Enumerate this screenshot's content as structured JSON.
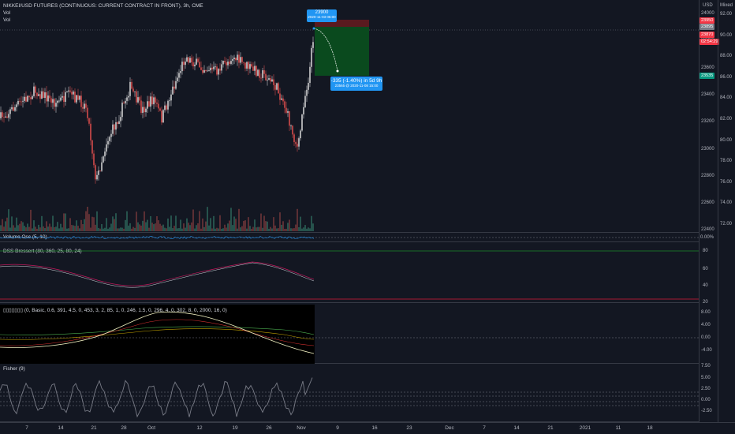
{
  "main_pane": {
    "title": "NIKKEI/USD FUTURES (CONTINUOUS: CURRENT CONTRACT IN FRONT), 3h, CME",
    "indicators": [
      "Vol",
      "Vol"
    ]
  },
  "panes": [
    {
      "title": "Volume Osc (5, 10)"
    },
    {
      "title": "DSS Bressert (80, 360, 25, 80, 24)"
    },
    {
      "title": "▯▯▯▯▯▯▯ (0, Basic, 0.6, 391, 4.5, 0, 453, 3, 2, 85, 1, 0, 246, 1.5, 0, 296, 4, 0, 302, 8, 0, 2000, 16, 0)"
    },
    {
      "title": "Fisher (9)"
    }
  ],
  "price_axis": {
    "currency": "USD",
    "ticks": [
      "24000",
      "23800",
      "23600",
      "23400",
      "23200",
      "23000",
      "22800",
      "22600",
      "22400"
    ],
    "tags": [
      {
        "label": "23950",
        "color": "#f23645"
      },
      {
        "label": "23895",
        "color": "#787b86"
      },
      {
        "label": "23870",
        "color": "#f23645"
      },
      {
        "label": "02:54:29",
        "color": "#f23645"
      },
      {
        "label": "23535",
        "color": "#089981"
      }
    ]
  },
  "secondary_axis": {
    "label": "Mixed",
    "ticks": [
      "92.00",
      "90.00",
      "88.00",
      "86.00",
      "84.00",
      "82.00",
      "80.00",
      "78.00",
      "76.00",
      "74.00",
      "72.00"
    ]
  },
  "volosc_axis": {
    "ticks": [
      "0.00%"
    ]
  },
  "dss_axis": {
    "ticks": [
      "80",
      "60",
      "40",
      "20"
    ]
  },
  "custom_axis": {
    "ticks": [
      "8.00",
      "4.00",
      "0.00",
      "-4.00"
    ]
  },
  "fisher_axis": {
    "ticks": [
      "7.50",
      "5.00",
      "2.50",
      "0.00",
      "-2.50"
    ]
  },
  "time_axis": {
    "labels": [
      "7",
      "14",
      "21",
      "28",
      "Oct",
      "12",
      "19",
      "26",
      "Nov",
      "9",
      "16",
      "23",
      "Dec",
      "7",
      "14",
      "21",
      "2021",
      "11",
      "18"
    ]
  },
  "callouts": {
    "top": {
      "line1": "23900",
      "line2": "2020-11-03 06:00"
    },
    "bottom": {
      "line1": "-335 (-1.40%) in 5d 9h",
      "line2": "23565 @ 2020-11-08 15:00"
    }
  },
  "colors": {
    "background": "#131722",
    "up": "#e8e8e8",
    "down": "#ef5350",
    "accent": "#2196f3",
    "profit": "#0a5a1e",
    "loss": "#5a1a1f"
  }
}
